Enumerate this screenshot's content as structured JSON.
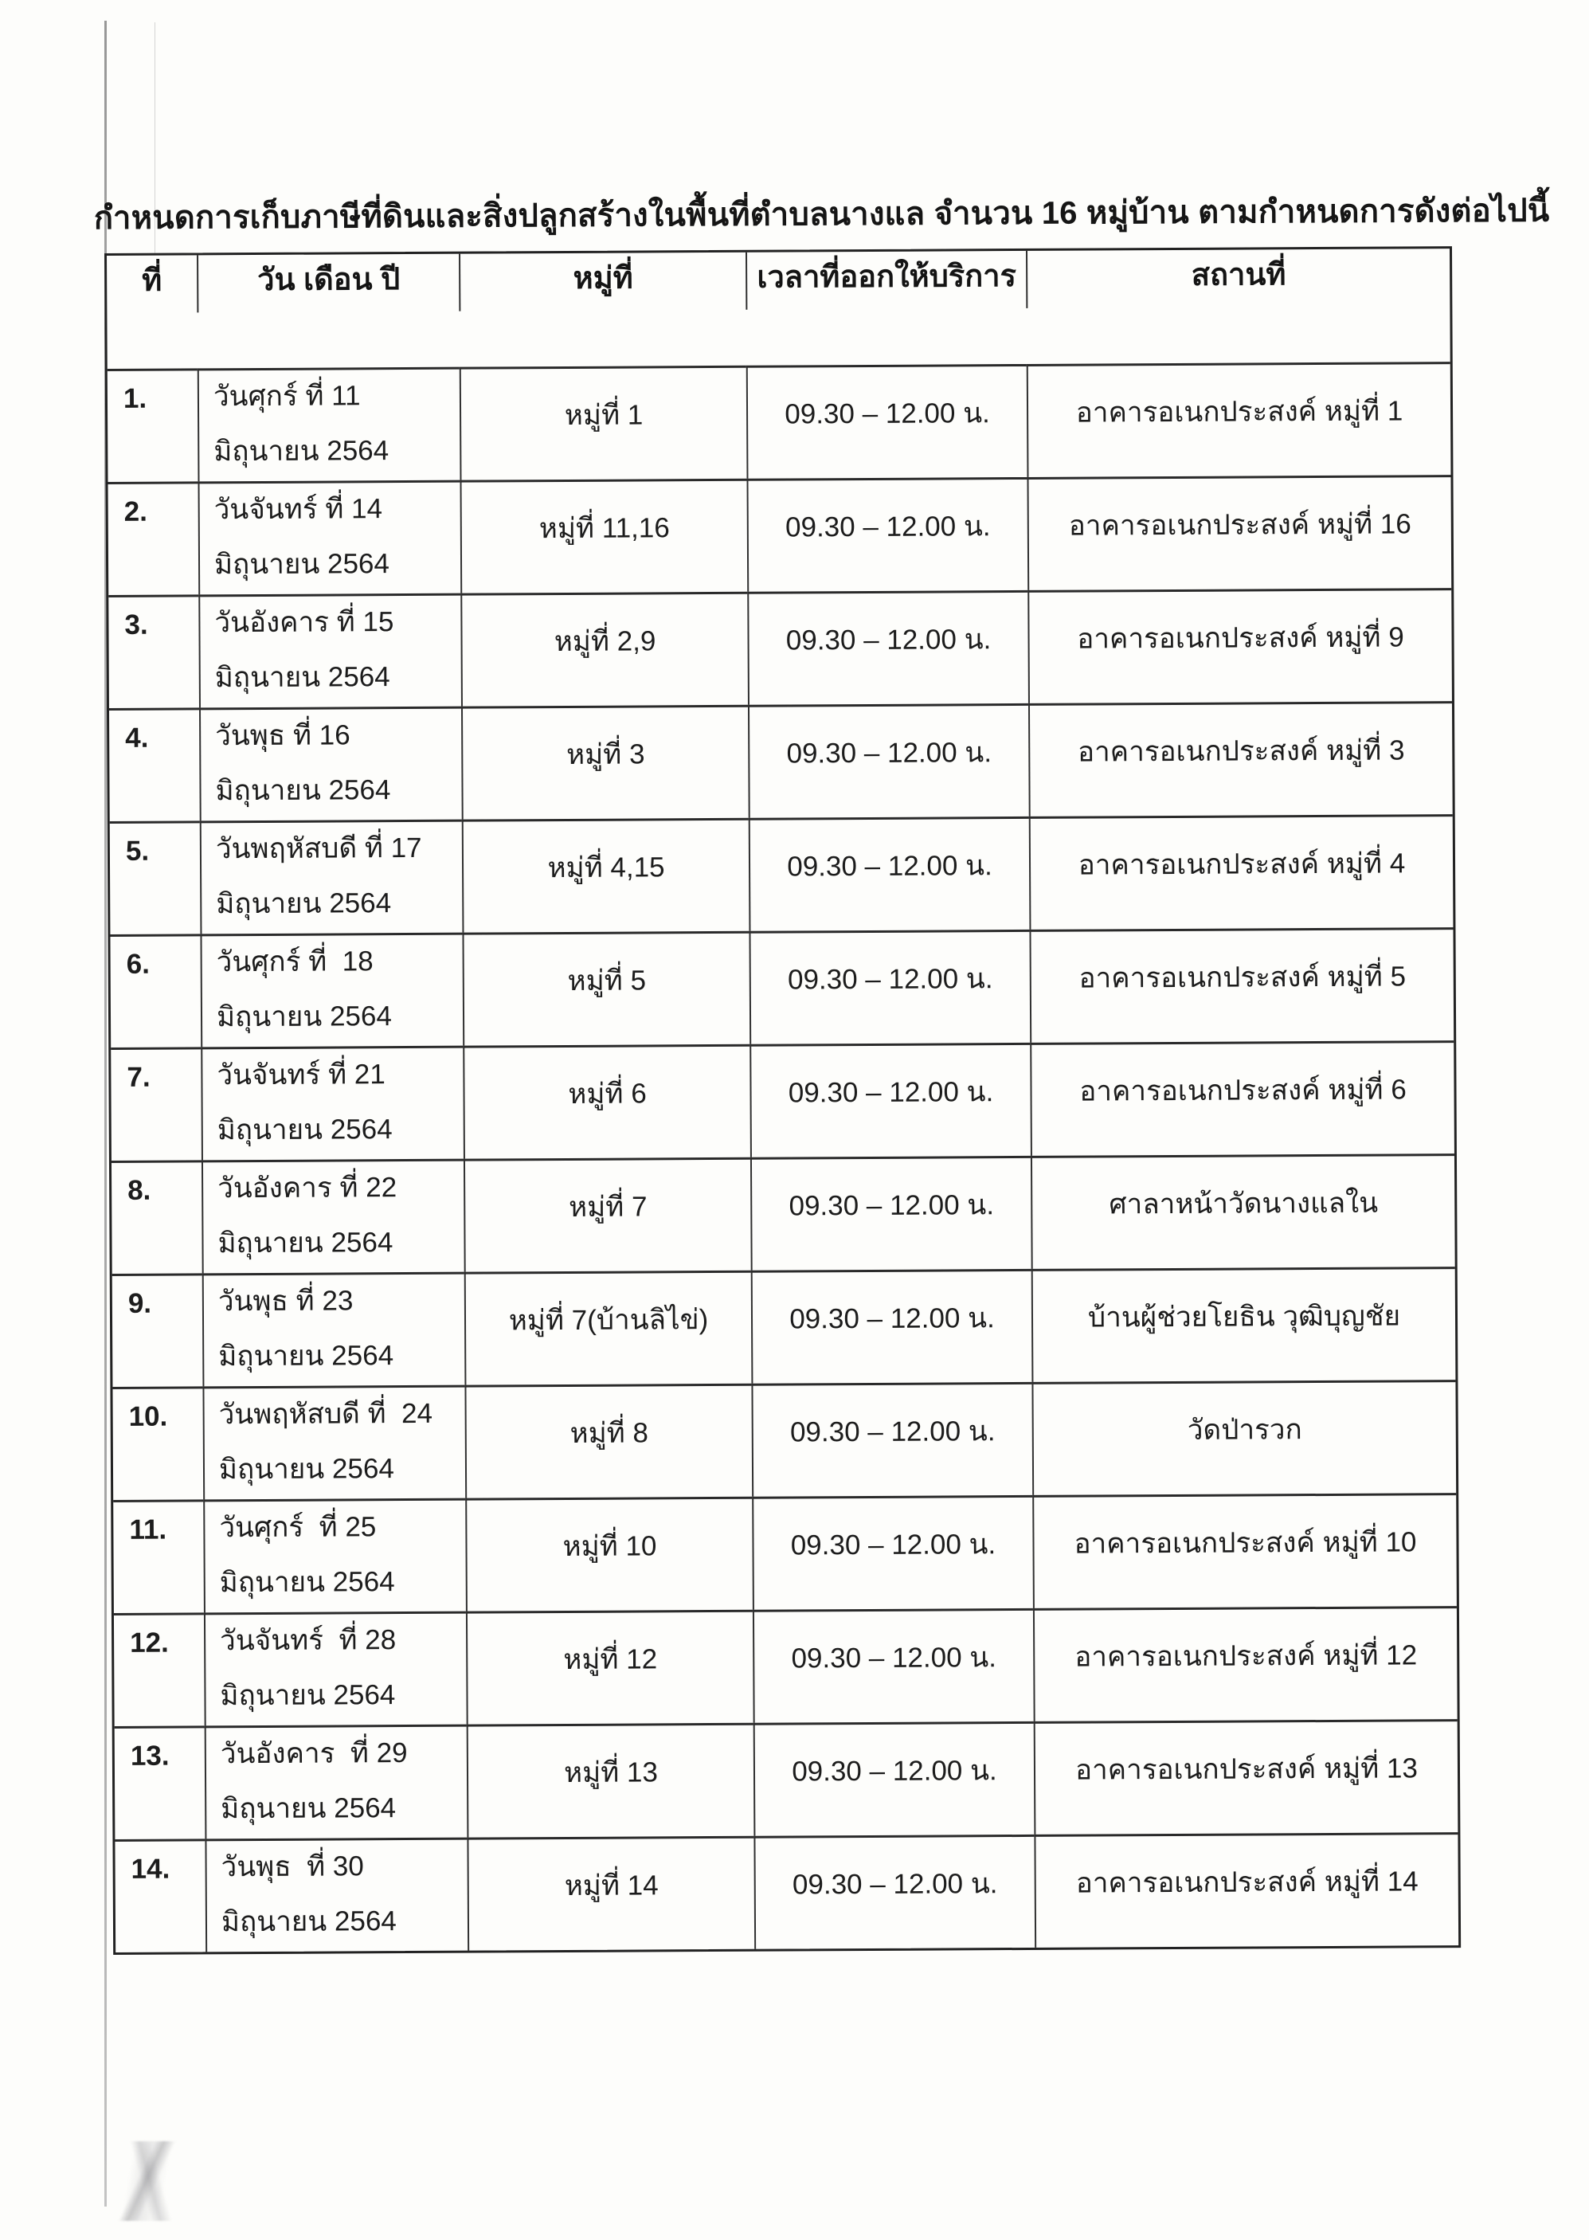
{
  "page": {
    "title": "กำหนดการเก็บภาษีที่ดินและสิ่งปลูกสร้างในพื้นที่ตำบลนางแล จำนวน 16 หมู่บ้าน ตามกำหนดการดังต่อไปนี้"
  },
  "table": {
    "headers": {
      "no": "ที่",
      "date": "วัน เดือน ปี",
      "moo": "หมู่ที่",
      "time": "เวลาที่ออกให้บริการ",
      "location": "สถานที่"
    },
    "rows": [
      {
        "no": "1.",
        "date1": "วันศุกร์ ที่ 11",
        "date2": "มิถุนายน 2564",
        "moo": "หมู่ที่ 1",
        "time": "09.30 – 12.00 น.",
        "location": "อาคารอเนกประสงค์ หมู่ที่ 1"
      },
      {
        "no": "2.",
        "date1": "วันจันทร์ ที่ 14",
        "date2": "มิถุนายน 2564",
        "moo": "หมู่ที่ 11,16",
        "time": "09.30 – 12.00 น.",
        "location": "อาคารอเนกประสงค์ หมู่ที่ 16"
      },
      {
        "no": "3.",
        "date1": "วันอังคาร ที่ 15",
        "date2": "มิถุนายน 2564",
        "moo": "หมู่ที่ 2,9",
        "time": "09.30 – 12.00 น.",
        "location": "อาคารอเนกประสงค์ หมู่ที่ 9"
      },
      {
        "no": "4.",
        "date1": "วันพุธ ที่ 16",
        "date2": "มิถุนายน 2564",
        "moo": "หมู่ที่ 3",
        "time": "09.30 – 12.00 น.",
        "location": "อาคารอเนกประสงค์ หมู่ที่ 3"
      },
      {
        "no": "5.",
        "date1": "วันพฤหัสบดี ที่ 17",
        "date2": "มิถุนายน 2564",
        "moo": "หมู่ที่ 4,15",
        "time": "09.30 – 12.00 น.",
        "location": "อาคารอเนกประสงค์ หมู่ที่ 4"
      },
      {
        "no": "6.",
        "date1": "วันศุกร์ ที่  18",
        "date2": "มิถุนายน 2564",
        "moo": "หมู่ที่ 5",
        "time": "09.30 – 12.00 น.",
        "location": "อาคารอเนกประสงค์ หมู่ที่ 5"
      },
      {
        "no": "7.",
        "date1": "วันจันทร์ ที่ 21",
        "date2": "มิถุนายน 2564",
        "moo": "หมู่ที่ 6",
        "time": "09.30 – 12.00 น.",
        "location": "อาคารอเนกประสงค์ หมู่ที่ 6"
      },
      {
        "no": "8.",
        "date1": "วันอังคาร ที่ 22",
        "date2": "มิถุนายน 2564",
        "moo": "หมู่ที่ 7",
        "time": "09.30 – 12.00 น.",
        "location": "ศาลาหน้าวัดนางแลใน"
      },
      {
        "no": "9.",
        "date1": "วันพุธ ที่ 23",
        "date2": "มิถุนายน 2564",
        "moo": "หมู่ที่ 7(บ้านลิไข่)",
        "time": "09.30 – 12.00 น.",
        "location": "บ้านผู้ช่วยโยธิน วุฒิบุญชัย"
      },
      {
        "no": "10.",
        "date1": "วันพฤหัสบดี ที่  24",
        "date2": "มิถุนายน 2564",
        "moo": "หมู่ที่ 8",
        "time": "09.30 – 12.00 น.",
        "location": "วัดป่ารวก"
      },
      {
        "no": "11.",
        "date1": "วันศุกร์  ที่ 25",
        "date2": "มิถุนายน 2564",
        "moo": "หมู่ที่ 10",
        "time": "09.30 – 12.00 น.",
        "location": "อาคารอเนกประสงค์ หมู่ที่ 10"
      },
      {
        "no": "12.",
        "date1": "วันจันทร์  ที่ 28",
        "date2": "มิถุนายน 2564",
        "moo": "หมู่ที่ 12",
        "time": "09.30 – 12.00 น.",
        "location": "อาคารอเนกประสงค์ หมู่ที่ 12"
      },
      {
        "no": "13.",
        "date1": "วันอังคาร  ที่ 29",
        "date2": "มิถุนายน 2564",
        "moo": "หมู่ที่ 13",
        "time": "09.30 – 12.00 น.",
        "location": "อาคารอเนกประสงค์ หมู่ที่ 13"
      },
      {
        "no": "14.",
        "date1": "วันพุธ  ที่ 30",
        "date2": "มิถุนายน 2564",
        "moo": "หมู่ที่ 14",
        "time": "09.30 – 12.00 น.",
        "location": "อาคารอเนกประสงค์ หมู่ที่ 14"
      }
    ]
  }
}
